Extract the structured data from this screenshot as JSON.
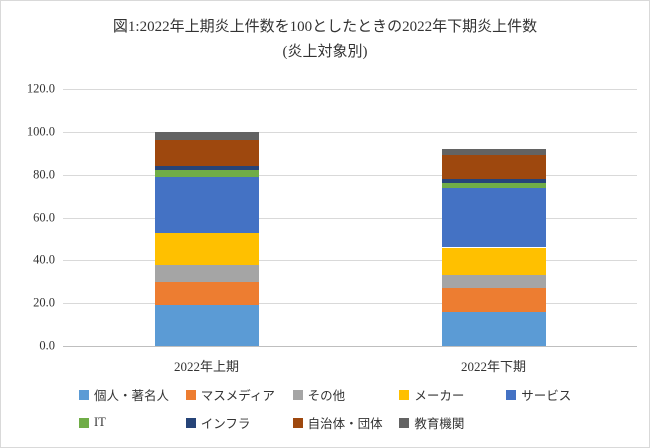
{
  "title": {
    "line1": "図1:2022年上期炎上件数を100としたときの2022年下期炎上件数",
    "line2": "(炎上対象別)"
  },
  "chart_data": {
    "type": "bar",
    "stacked": true,
    "title": "図1:2022年上期炎上件数を100としたときの2022年下期炎上件数(炎上対象別)",
    "categories": [
      "2022年上期",
      "2022年下期"
    ],
    "series": [
      {
        "name": "個人・著名人",
        "color": "#5B9BD5",
        "values": [
          19,
          16
        ]
      },
      {
        "name": "マスメディア",
        "color": "#ED7D31",
        "values": [
          11,
          11
        ]
      },
      {
        "name": "その他",
        "color": "#A5A5A5",
        "values": [
          8,
          6
        ]
      },
      {
        "name": "メーカー",
        "color": "#FFC000",
        "values": [
          15,
          13
        ]
      },
      {
        "name": "サービス",
        "color": "#4472C4",
        "values": [
          26,
          28
        ]
      },
      {
        "name": "IT",
        "color": "#70AD47",
        "values": [
          3,
          2
        ]
      },
      {
        "name": "インフラ",
        "color": "#264478",
        "values": [
          2,
          2
        ]
      },
      {
        "name": "自治体・団体",
        "color": "#9E480E",
        "values": [
          12,
          11
        ]
      },
      {
        "name": "教育機関",
        "color": "#636363",
        "values": [
          4,
          3
        ]
      }
    ],
    "totals": [
      100,
      92
    ],
    "xlabel": "",
    "ylabel": "",
    "ylim": [
      0,
      120
    ],
    "ytick_step": 20,
    "ytick_labels": [
      "0.0",
      "20.0",
      "40.0",
      "60.0",
      "80.0",
      "100.0",
      "120.0"
    ],
    "grid": true,
    "legend_position": "bottom",
    "bar_centers_pct": [
      25,
      75
    ]
  }
}
